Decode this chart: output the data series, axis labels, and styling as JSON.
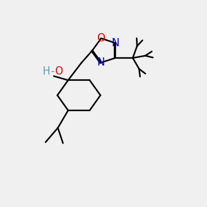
{
  "bg_color": "#f0f0f0",
  "bond_color": "#000000",
  "o_color": "#dd0000",
  "n_color": "#0000cc",
  "oh_color": "#5a9aaa",
  "line_width": 1.6,
  "font_size": 10.5,
  "fig_w": 3.0,
  "fig_h": 3.0,
  "dpi": 100,
  "xlim": [
    0,
    10
  ],
  "ylim": [
    0,
    10
  ]
}
